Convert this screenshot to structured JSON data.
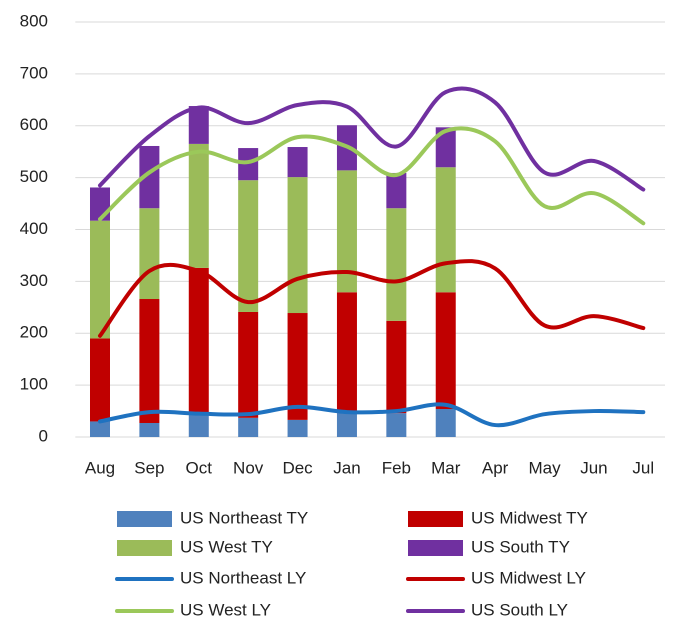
{
  "chart_data": {
    "type": "bar",
    "categories": [
      "Aug",
      "Sep",
      "Oct",
      "Nov",
      "Dec",
      "Jan",
      "Feb",
      "Mar",
      "Apr",
      "May",
      "Jun",
      "Jul"
    ],
    "ylim": [
      0,
      800
    ],
    "yticks": [
      0,
      100,
      200,
      300,
      400,
      500,
      600,
      700,
      800
    ],
    "grid": true,
    "series": [
      {
        "name": "US Northeast TY",
        "type": "bar",
        "color": "#4f81bd",
        "values": [
          30,
          27,
          48,
          37,
          33,
          46,
          46,
          54,
          null,
          null,
          null,
          null
        ]
      },
      {
        "name": "US Midwest TY",
        "type": "bar",
        "color": "#c00000",
        "values": [
          160,
          239,
          278,
          204,
          206,
          233,
          178,
          225,
          null,
          null,
          null,
          null
        ]
      },
      {
        "name": "US West TY",
        "type": "bar",
        "color": "#9bbb59",
        "values": [
          227,
          175,
          239,
          254,
          262,
          235,
          217,
          241,
          null,
          null,
          null,
          null
        ]
      },
      {
        "name": "US South TY",
        "type": "bar",
        "color": "#7030a0",
        "values": [
          64,
          120,
          73,
          62,
          58,
          87,
          68,
          77,
          null,
          null,
          null,
          null
        ]
      },
      {
        "name": "US Northeast LY",
        "type": "line",
        "color": "#1f72c0",
        "values": [
          30,
          48,
          45,
          44,
          58,
          48,
          50,
          62,
          23,
          44,
          50,
          48
        ]
      },
      {
        "name": "US Midwest LY",
        "type": "line",
        "color": "#c00000",
        "values": [
          195,
          320,
          320,
          260,
          305,
          318,
          300,
          335,
          325,
          215,
          233,
          210
        ]
      },
      {
        "name": "US West LY",
        "type": "line",
        "color": "#9bc85a",
        "values": [
          420,
          510,
          550,
          530,
          578,
          560,
          505,
          590,
          570,
          445,
          470,
          412
        ]
      },
      {
        "name": "US South LY",
        "type": "line",
        "color": "#7030a0",
        "values": [
          485,
          580,
          635,
          605,
          640,
          637,
          560,
          665,
          645,
          510,
          532,
          477
        ]
      }
    ]
  }
}
